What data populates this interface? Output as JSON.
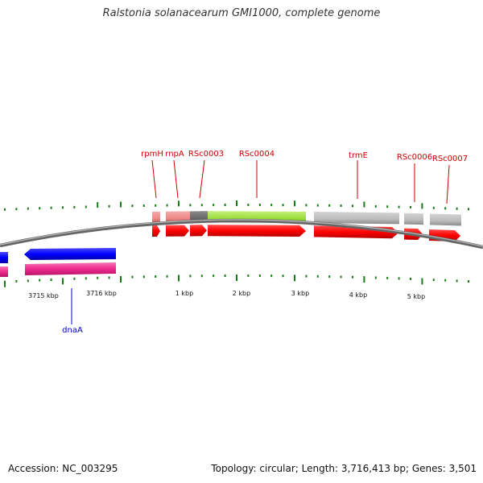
{
  "title": "Ralstonia solanacearum GMI1000, complete genome",
  "footer": {
    "accession": "Accession: NC_003295",
    "summary": "Topology: circular; Length: 3,716,413 bp; Genes: 3,501"
  },
  "scale_labels": [
    "3715 kbp",
    "3716 kbp",
    "1 kbp",
    "2 kbp",
    "3 kbp",
    "4 kbp",
    "5 kbp"
  ],
  "gene_labels_top": [
    "rpmH",
    "rnpA",
    "RSc0003",
    "RSc0004",
    "trmE",
    "RSc0006",
    "RSc0007"
  ],
  "gene_labels_bottom": [
    "dnaA"
  ],
  "colors": {
    "cds_forward": "#ff0000",
    "cds_reverse": "#0000ff",
    "feature_reverse": "#ee2a8e",
    "label_forward": "#cc0000",
    "label_reverse": "#0000cc",
    "tick": "#1a7a1a",
    "backbone": "#888888",
    "grey_feature": "#bbbbbb",
    "light_red": "#f08a8a",
    "dark_grey": "#6a6a6a",
    "lime": "#9cde3c"
  }
}
